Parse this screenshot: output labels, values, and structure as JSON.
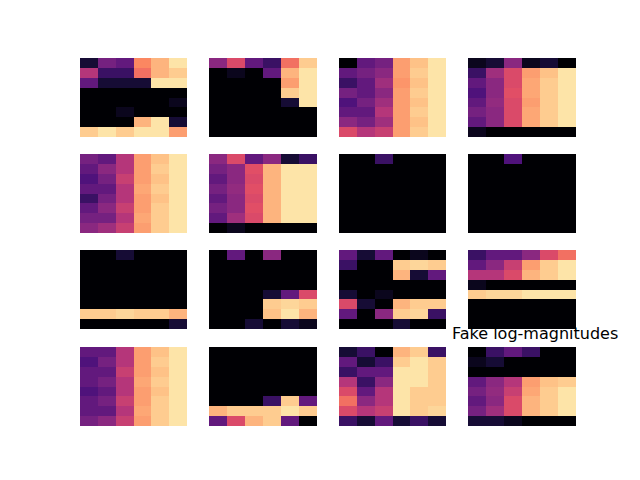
{
  "chart_data": {
    "type": "heatmap",
    "title": "Fake log-magnitudes",
    "color": "magma",
    "zlim": [
      0,
      1
    ],
    "tick_labels": false,
    "panels": [
      {
        "z": [
          [
            0.1,
            0.35,
            0.3,
            0.75,
            0.85,
            0.95
          ],
          [
            0.5,
            0.2,
            0.2,
            0.7,
            0.85,
            0.9
          ],
          [
            0.3,
            0.1,
            0.1,
            0.1,
            0.95,
            0.95
          ],
          [
            0,
            0,
            0,
            0,
            0,
            0
          ],
          [
            0,
            0,
            0,
            0,
            0,
            0.05
          ],
          [
            0,
            0,
            0.05,
            0,
            0,
            0
          ],
          [
            0,
            0,
            0,
            0.85,
            0.95,
            0.1
          ],
          [
            0.9,
            0.95,
            0.9,
            0.95,
            0.95,
            0.8
          ]
        ]
      },
      {
        "z": [
          [
            0.4,
            0.6,
            0.3,
            0.2,
            0.7,
            0.9
          ],
          [
            0,
            0.05,
            0,
            0.3,
            0.85,
            0.95
          ],
          [
            0,
            0,
            0,
            0,
            0.8,
            0.95
          ],
          [
            0,
            0,
            0,
            0,
            0.9,
            0.95
          ],
          [
            0,
            0,
            0,
            0,
            0.1,
            0.95
          ],
          [
            0,
            0,
            0,
            0,
            0,
            0
          ],
          [
            0,
            0,
            0,
            0,
            0,
            0
          ],
          [
            0,
            0,
            0,
            0,
            0,
            0
          ]
        ]
      },
      {
        "z": [
          [
            0,
            0.3,
            0.35,
            0.8,
            0.88,
            0.95
          ],
          [
            0.3,
            0.35,
            0.4,
            0.8,
            0.9,
            0.95
          ],
          [
            0.2,
            0.3,
            0.45,
            0.78,
            0.88,
            0.95
          ],
          [
            0.35,
            0.3,
            0.4,
            0.8,
            0.9,
            0.95
          ],
          [
            0.25,
            0.35,
            0.45,
            0.8,
            0.88,
            0.95
          ],
          [
            0.3,
            0.3,
            0.5,
            0.8,
            0.9,
            0.95
          ],
          [
            0.4,
            0.35,
            0.45,
            0.8,
            0.88,
            0.95
          ],
          [
            0.6,
            0.5,
            0.55,
            0.8,
            0.9,
            0.95
          ]
        ]
      },
      {
        "z": [
          [
            0.05,
            0.1,
            0.4,
            0.05,
            0.1,
            0
          ],
          [
            0.2,
            0.45,
            0.6,
            0.8,
            0.88,
            0.95
          ],
          [
            0.3,
            0.4,
            0.6,
            0.82,
            0.9,
            0.95
          ],
          [
            0.25,
            0.4,
            0.62,
            0.82,
            0.9,
            0.95
          ],
          [
            0.3,
            0.42,
            0.6,
            0.8,
            0.9,
            0.95
          ],
          [
            0.35,
            0.4,
            0.6,
            0.82,
            0.9,
            0.95
          ],
          [
            0.3,
            0.4,
            0.6,
            0.82,
            0.9,
            0.95
          ],
          [
            0.05,
            0,
            0,
            0,
            0,
            0
          ]
        ]
      },
      {
        "z": [
          [
            0.35,
            0.3,
            0.5,
            0.8,
            0.88,
            0.95
          ],
          [
            0.3,
            0.4,
            0.5,
            0.8,
            0.9,
            0.95
          ],
          [
            0.25,
            0.35,
            0.55,
            0.8,
            0.88,
            0.95
          ],
          [
            0.3,
            0.3,
            0.5,
            0.82,
            0.9,
            0.95
          ],
          [
            0.2,
            0.35,
            0.5,
            0.8,
            0.88,
            0.95
          ],
          [
            0.3,
            0.4,
            0.55,
            0.8,
            0.9,
            0.95
          ],
          [
            0.35,
            0.35,
            0.5,
            0.82,
            0.9,
            0.95
          ],
          [
            0.4,
            0.45,
            0.55,
            0.8,
            0.9,
            0.95
          ]
        ]
      },
      {
        "z": [
          [
            0.4,
            0.6,
            0.3,
            0.4,
            0.1,
            0.2
          ],
          [
            0.35,
            0.4,
            0.62,
            0.85,
            0.95,
            0.95
          ],
          [
            0.3,
            0.4,
            0.6,
            0.85,
            0.95,
            0.95
          ],
          [
            0.35,
            0.42,
            0.62,
            0.85,
            0.95,
            0.95
          ],
          [
            0.3,
            0.4,
            0.6,
            0.85,
            0.95,
            0.95
          ],
          [
            0.35,
            0.4,
            0.62,
            0.85,
            0.95,
            0.95
          ],
          [
            0.3,
            0.45,
            0.6,
            0.85,
            0.95,
            0.95
          ],
          [
            0,
            0.05,
            0,
            0,
            0,
            0
          ]
        ]
      },
      {
        "z": [
          [
            0,
            0,
            0.2,
            0,
            0,
            0
          ],
          [
            0,
            0,
            0,
            0,
            0,
            0
          ],
          [
            0,
            0,
            0,
            0,
            0,
            0
          ],
          [
            0,
            0,
            0,
            0,
            0,
            0
          ],
          [
            0,
            0,
            0,
            0,
            0,
            0
          ],
          [
            0,
            0,
            0,
            0,
            0,
            0
          ],
          [
            0,
            0,
            0,
            0,
            0,
            0
          ],
          [
            0,
            0,
            0,
            0,
            0,
            0
          ]
        ]
      },
      {
        "z": [
          [
            0,
            0,
            0.25,
            0,
            0,
            0
          ],
          [
            0,
            0,
            0,
            0,
            0,
            0
          ],
          [
            0,
            0,
            0,
            0,
            0,
            0
          ],
          [
            0,
            0,
            0,
            0,
            0,
            0
          ],
          [
            0,
            0,
            0,
            0,
            0,
            0
          ],
          [
            0,
            0,
            0,
            0,
            0,
            0
          ],
          [
            0,
            0,
            0,
            0,
            0,
            0
          ],
          [
            0,
            0,
            0,
            0,
            0,
            0
          ]
        ]
      },
      {
        "z": [
          [
            0,
            0,
            0.1,
            0,
            0,
            0
          ],
          [
            0,
            0,
            0,
            0,
            0,
            0
          ],
          [
            0,
            0,
            0,
            0,
            0,
            0
          ],
          [
            0,
            0,
            0,
            0,
            0,
            0
          ],
          [
            0,
            0,
            0,
            0,
            0,
            0
          ],
          [
            0,
            0,
            0,
            0,
            0,
            0
          ],
          [
            0.9,
            0.9,
            0.92,
            0.9,
            0.9,
            0.85
          ],
          [
            0,
            0,
            0,
            0,
            0,
            0.1
          ]
        ]
      },
      {
        "z": [
          [
            0,
            0.3,
            0,
            0.4,
            0,
            0
          ],
          [
            0,
            0,
            0,
            0,
            0,
            0
          ],
          [
            0,
            0,
            0,
            0,
            0,
            0
          ],
          [
            0,
            0,
            0,
            0,
            0,
            0
          ],
          [
            0,
            0,
            0,
            0.1,
            0.3,
            0.6
          ],
          [
            0,
            0,
            0,
            0.9,
            0.92,
            0.9
          ],
          [
            0,
            0,
            0,
            0.88,
            0.95,
            0.85
          ],
          [
            0,
            0,
            0.1,
            0,
            0.1,
            0.05
          ]
        ]
      },
      {
        "z": [
          [
            0.3,
            0.1,
            0.3,
            0,
            0.05,
            0
          ],
          [
            0.2,
            0,
            0,
            0.9,
            0.92,
            0.9
          ],
          [
            0,
            0,
            0,
            0.85,
            0.1,
            0.3
          ],
          [
            0,
            0,
            0,
            0,
            0,
            0
          ],
          [
            0.1,
            0,
            0.05,
            0,
            0,
            0
          ],
          [
            0.6,
            0.1,
            0,
            0.85,
            0.9,
            0.9
          ],
          [
            0.3,
            0,
            0.4,
            0.9,
            0.92,
            0.2
          ],
          [
            0,
            0,
            0,
            0.1,
            0,
            0
          ]
        ]
      },
      {
        "z": [
          [
            0.2,
            0.3,
            0.3,
            0.4,
            0.6,
            0.7
          ],
          [
            0.3,
            0.4,
            0.55,
            0.8,
            0.9,
            0.95
          ],
          [
            0.5,
            0.5,
            0.6,
            0.85,
            0.9,
            0.95
          ],
          [
            0.05,
            0,
            0,
            0,
            0,
            0
          ],
          [
            0.9,
            0.92,
            0.92,
            0.95,
            0.95,
            0.95
          ],
          [
            0,
            0,
            0,
            0,
            0,
            0
          ],
          [
            0,
            0,
            0,
            0,
            0,
            0
          ],
          [
            0,
            0,
            0,
            0,
            0,
            0
          ]
        ]
      },
      {
        "z": [
          [
            0.3,
            0.3,
            0.5,
            0.8,
            0.88,
            0.95
          ],
          [
            0.25,
            0.35,
            0.5,
            0.8,
            0.9,
            0.95
          ],
          [
            0.3,
            0.3,
            0.55,
            0.8,
            0.88,
            0.95
          ],
          [
            0.3,
            0.35,
            0.5,
            0.82,
            0.9,
            0.95
          ],
          [
            0.25,
            0.3,
            0.5,
            0.8,
            0.88,
            0.95
          ],
          [
            0.3,
            0.35,
            0.55,
            0.8,
            0.9,
            0.95
          ],
          [
            0.3,
            0.3,
            0.5,
            0.82,
            0.9,
            0.95
          ],
          [
            0.35,
            0.4,
            0.55,
            0.8,
            0.9,
            0.95
          ]
        ]
      },
      {
        "z": [
          [
            0,
            0,
            0,
            0,
            0,
            0
          ],
          [
            0,
            0,
            0,
            0,
            0,
            0
          ],
          [
            0,
            0,
            0,
            0,
            0,
            0
          ],
          [
            0,
            0,
            0,
            0,
            0,
            0
          ],
          [
            0,
            0,
            0,
            0,
            0,
            0
          ],
          [
            0,
            0,
            0,
            0.2,
            0.9,
            0.3
          ],
          [
            0.85,
            0.9,
            0.9,
            0.9,
            0.95,
            0.9
          ],
          [
            0.3,
            0.6,
            0.85,
            0.9,
            0.3,
            0
          ]
        ]
      },
      {
        "z": [
          [
            0.1,
            0.2,
            0,
            0.85,
            0.9,
            0.2
          ],
          [
            0.3,
            0.1,
            0.2,
            0.9,
            0.95,
            0.9
          ],
          [
            0.2,
            0.3,
            0.3,
            0.95,
            0.95,
            0.9
          ],
          [
            0.5,
            0.2,
            0.4,
            0.95,
            0.95,
            0.9
          ],
          [
            0.6,
            0.3,
            0.5,
            0.95,
            0.9,
            0.9
          ],
          [
            0.7,
            0.4,
            0.5,
            0.95,
            0.9,
            0.9
          ],
          [
            0.6,
            0.5,
            0.55,
            0.95,
            0.9,
            0.92
          ],
          [
            0.2,
            0.1,
            0.3,
            0.1,
            0.2,
            0.1
          ]
        ]
      },
      {
        "z": [
          [
            0,
            0.2,
            0.3,
            0.2,
            0,
            0
          ],
          [
            0.05,
            0.1,
            0,
            0,
            0,
            0
          ],
          [
            0,
            0,
            0,
            0,
            0,
            0
          ],
          [
            0.3,
            0.4,
            0.5,
            0.8,
            0.88,
            0.9
          ],
          [
            0.35,
            0.42,
            0.55,
            0.82,
            0.9,
            0.95
          ],
          [
            0.3,
            0.4,
            0.6,
            0.85,
            0.9,
            0.95
          ],
          [
            0.35,
            0.45,
            0.6,
            0.85,
            0.9,
            0.95
          ],
          [
            0.1,
            0.1,
            0.05,
            0,
            0,
            0
          ]
        ]
      }
    ]
  }
}
